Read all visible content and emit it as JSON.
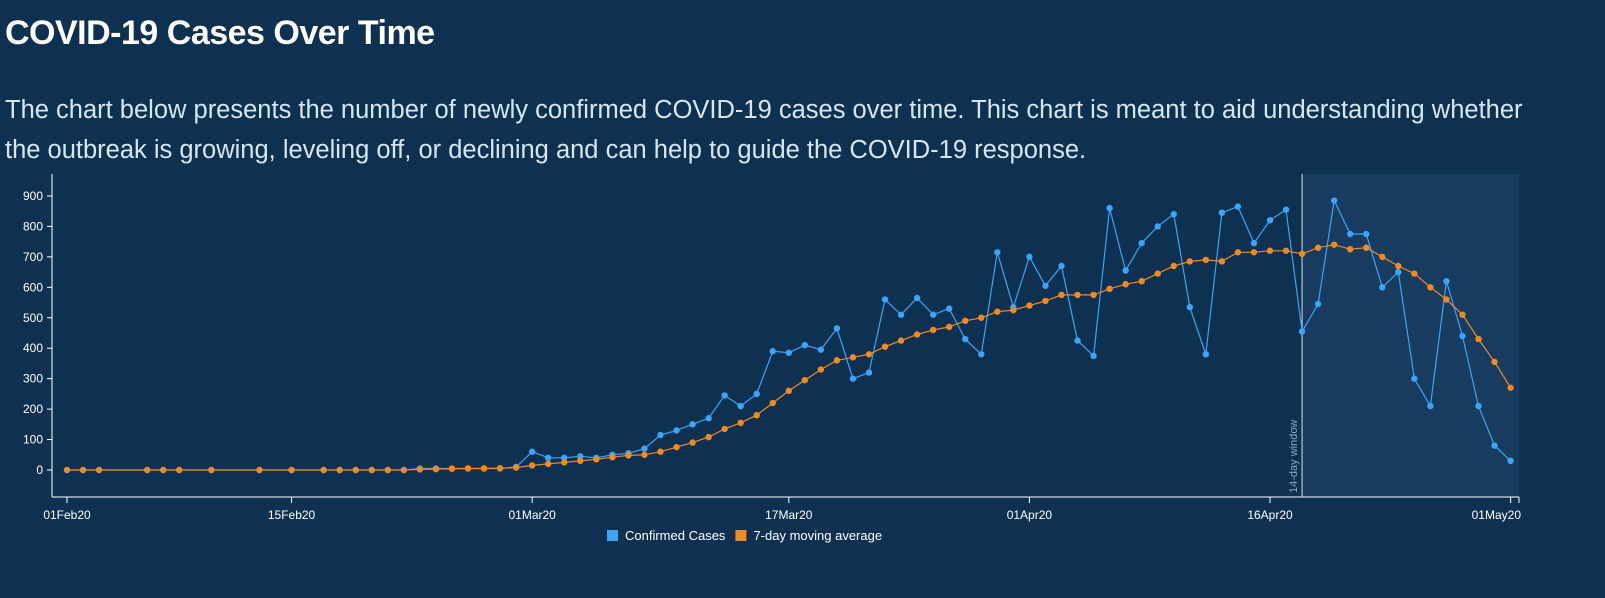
{
  "page": {
    "title": "COVID-19 Cases Over Time",
    "description": "The chart below presents the number of newly confirmed COVID-19 cases over time. This chart is meant to aid understanding whether the outbreak is growing, leveling off, or declining and can help to guide the COVID-19 response."
  },
  "chart_data": {
    "type": "line",
    "x_start": "2020-02-01",
    "x_end": "2020-05-02",
    "xtick_labels": [
      "01Feb20",
      "15Feb20",
      "01Mar20",
      "17Mar20",
      "01Apr20",
      "16Apr20",
      "01May20"
    ],
    "xtick_days": [
      0,
      14,
      29,
      45,
      60,
      75,
      90
    ],
    "ytick_labels": [
      "0",
      "100",
      "200",
      "300",
      "400",
      "500",
      "600",
      "700",
      "800",
      "900"
    ],
    "ylim": [
      -85,
      970
    ],
    "window_label": "14-day window",
    "window_start_day": 77,
    "series": [
      {
        "name": "Confirmed Cases",
        "color": "#3ca5f5",
        "points": [
          [
            0,
            0
          ],
          [
            1,
            0
          ],
          [
            2,
            0
          ],
          [
            5,
            0
          ],
          [
            6,
            0
          ],
          [
            7,
            0
          ],
          [
            9,
            0
          ],
          [
            12,
            0
          ],
          [
            14,
            0
          ],
          [
            16,
            0
          ],
          [
            17,
            0
          ],
          [
            18,
            0
          ],
          [
            19,
            0
          ],
          [
            20,
            0
          ],
          [
            21,
            0
          ],
          [
            22,
            5
          ],
          [
            23,
            5
          ],
          [
            24,
            5
          ],
          [
            25,
            5
          ],
          [
            26,
            5
          ],
          [
            27,
            5
          ],
          [
            28,
            10
          ],
          [
            29,
            60
          ],
          [
            30,
            40
          ],
          [
            31,
            40
          ],
          [
            32,
            45
          ],
          [
            33,
            40
          ],
          [
            34,
            50
          ],
          [
            35,
            55
          ],
          [
            36,
            70
          ],
          [
            37,
            115
          ],
          [
            38,
            130
          ],
          [
            39,
            150
          ],
          [
            40,
            170
          ],
          [
            41,
            245
          ],
          [
            42,
            210
          ],
          [
            43,
            250
          ],
          [
            44,
            390
          ],
          [
            45,
            385
          ],
          [
            46,
            410
          ],
          [
            47,
            395
          ],
          [
            48,
            465
          ],
          [
            49,
            300
          ],
          [
            50,
            320
          ],
          [
            51,
            560
          ],
          [
            52,
            510
          ],
          [
            53,
            565
          ],
          [
            54,
            510
          ],
          [
            55,
            530
          ],
          [
            56,
            430
          ],
          [
            57,
            380
          ],
          [
            58,
            715
          ],
          [
            59,
            535
          ],
          [
            60,
            700
          ],
          [
            61,
            605
          ],
          [
            62,
            670
          ],
          [
            63,
            425
          ],
          [
            64,
            375
          ],
          [
            65,
            860
          ],
          [
            66,
            655
          ],
          [
            67,
            745
          ],
          [
            68,
            800
          ],
          [
            69,
            840
          ],
          [
            70,
            535
          ],
          [
            71,
            380
          ],
          [
            72,
            845
          ],
          [
            73,
            865
          ],
          [
            74,
            745
          ],
          [
            75,
            820
          ],
          [
            76,
            855
          ],
          [
            77,
            455
          ],
          [
            78,
            545
          ],
          [
            79,
            885
          ],
          [
            80,
            775
          ],
          [
            81,
            775
          ],
          [
            82,
            600
          ],
          [
            83,
            650
          ],
          [
            84,
            300
          ],
          [
            85,
            210
          ],
          [
            86,
            620
          ],
          [
            87,
            440
          ],
          [
            88,
            210
          ],
          [
            89,
            80
          ],
          [
            90,
            30
          ]
        ]
      },
      {
        "name": "7-day moving average",
        "color": "#f08a24",
        "points": [
          [
            0,
            0
          ],
          [
            1,
            0
          ],
          [
            2,
            0
          ],
          [
            5,
            0
          ],
          [
            6,
            0
          ],
          [
            7,
            0
          ],
          [
            9,
            0
          ],
          [
            12,
            0
          ],
          [
            14,
            0
          ],
          [
            16,
            0
          ],
          [
            17,
            0
          ],
          [
            18,
            0
          ],
          [
            19,
            0
          ],
          [
            20,
            0
          ],
          [
            21,
            0
          ],
          [
            22,
            2
          ],
          [
            23,
            3
          ],
          [
            24,
            4
          ],
          [
            25,
            5
          ],
          [
            26,
            5
          ],
          [
            27,
            6
          ],
          [
            28,
            8
          ],
          [
            29,
            15
          ],
          [
            30,
            20
          ],
          [
            31,
            25
          ],
          [
            32,
            30
          ],
          [
            33,
            35
          ],
          [
            34,
            42
          ],
          [
            35,
            48
          ],
          [
            36,
            50
          ],
          [
            37,
            60
          ],
          [
            38,
            75
          ],
          [
            39,
            90
          ],
          [
            40,
            108
          ],
          [
            41,
            135
          ],
          [
            42,
            155
          ],
          [
            43,
            180
          ],
          [
            44,
            220
          ],
          [
            45,
            260
          ],
          [
            46,
            295
          ],
          [
            47,
            330
          ],
          [
            48,
            360
          ],
          [
            49,
            370
          ],
          [
            50,
            380
          ],
          [
            51,
            405
          ],
          [
            52,
            425
          ],
          [
            53,
            445
          ],
          [
            54,
            460
          ],
          [
            55,
            470
          ],
          [
            56,
            490
          ],
          [
            57,
            500
          ],
          [
            58,
            520
          ],
          [
            59,
            525
          ],
          [
            60,
            540
          ],
          [
            61,
            555
          ],
          [
            62,
            575
          ],
          [
            63,
            575
          ],
          [
            64,
            575
          ],
          [
            65,
            595
          ],
          [
            66,
            610
          ],
          [
            67,
            620
          ],
          [
            68,
            645
          ],
          [
            69,
            670
          ],
          [
            70,
            685
          ],
          [
            71,
            690
          ],
          [
            72,
            685
          ],
          [
            73,
            715
          ],
          [
            74,
            715
          ],
          [
            75,
            720
          ],
          [
            76,
            720
          ],
          [
            77,
            710
          ],
          [
            78,
            730
          ],
          [
            79,
            740
          ],
          [
            80,
            725
          ],
          [
            81,
            730
          ],
          [
            82,
            700
          ],
          [
            83,
            670
          ],
          [
            84,
            645
          ],
          [
            85,
            600
          ],
          [
            86,
            560
          ],
          [
            87,
            510
          ],
          [
            88,
            430
          ],
          [
            89,
            355
          ],
          [
            90,
            270
          ]
        ]
      }
    ]
  }
}
